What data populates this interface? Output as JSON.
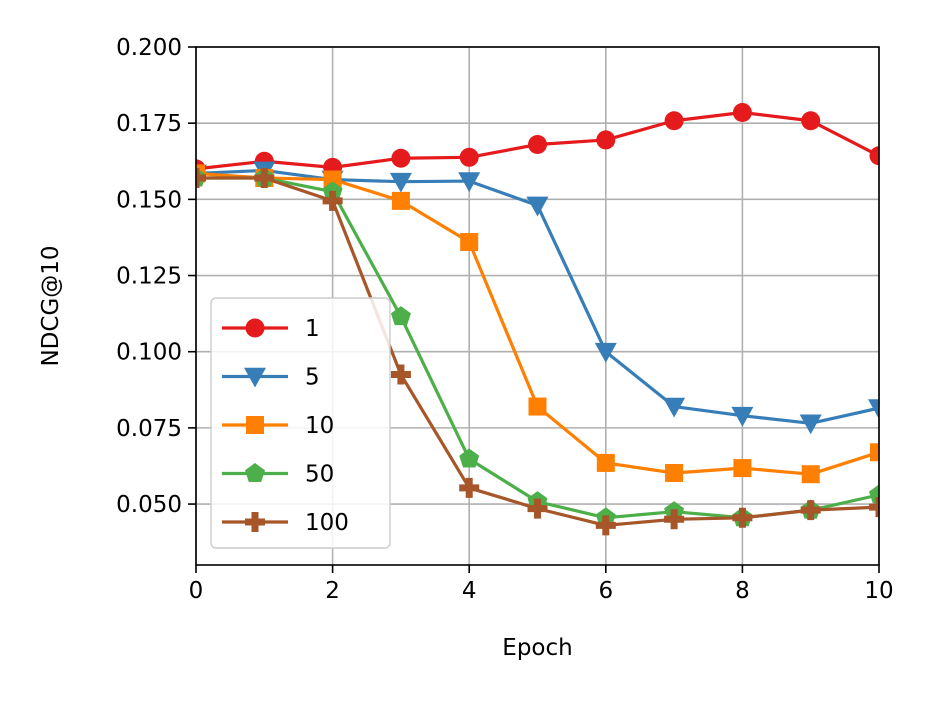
{
  "chart_data": {
    "type": "line",
    "title": "",
    "xlabel": "Epoch",
    "ylabel": "NDCG@10",
    "xlim": [
      0,
      10
    ],
    "ylim": [
      0.03,
      0.2
    ],
    "x_ticks": [
      0,
      2,
      4,
      6,
      8,
      10
    ],
    "y_ticks": [
      0.05,
      0.075,
      0.1,
      0.125,
      0.15,
      0.175,
      0.2
    ],
    "x_tick_labels": [
      "0",
      "2",
      "4",
      "6",
      "8",
      "10"
    ],
    "y_tick_labels": [
      "0.050",
      "0.075",
      "0.100",
      "0.125",
      "0.150",
      "0.175",
      "0.200"
    ],
    "grid": true,
    "legend_position": "lower-left",
    "x": [
      0,
      1,
      2,
      3,
      4,
      5,
      6,
      7,
      8,
      9,
      10
    ],
    "series": [
      {
        "name": "1",
        "color": "#e41a1c",
        "marker": "circle",
        "values": [
          0.16,
          0.1625,
          0.1605,
          0.1635,
          0.1638,
          0.168,
          0.1695,
          0.1758,
          0.1785,
          0.1758,
          0.1643
        ]
      },
      {
        "name": "5",
        "color": "#377eb8",
        "marker": "triangle-down",
        "values": [
          0.1585,
          0.1595,
          0.1565,
          0.1558,
          0.156,
          0.148,
          0.1,
          0.082,
          0.079,
          0.0765,
          0.0815
        ]
      },
      {
        "name": "10",
        "color": "#ff7f00",
        "marker": "square",
        "values": [
          0.1585,
          0.157,
          0.1565,
          0.1495,
          0.136,
          0.082,
          0.0635,
          0.0602,
          0.0618,
          0.0598,
          0.067
        ]
      },
      {
        "name": "50",
        "color": "#4daf4a",
        "marker": "pentagon",
        "values": [
          0.157,
          0.157,
          0.1525,
          0.1115,
          0.0648,
          0.0508,
          0.0455,
          0.0475,
          0.0455,
          0.048,
          0.053
        ]
      },
      {
        "name": "100",
        "color": "#a65628",
        "marker": "plus",
        "values": [
          0.157,
          0.157,
          0.1495,
          0.0925,
          0.0553,
          0.0485,
          0.043,
          0.045,
          0.0455,
          0.048,
          0.049
        ]
      }
    ]
  }
}
